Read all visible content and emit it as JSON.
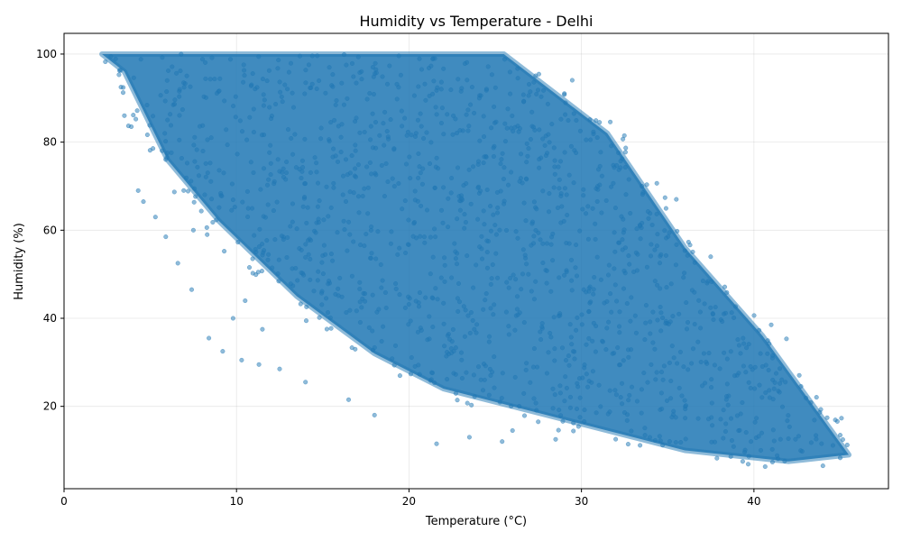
{
  "chart_data": {
    "type": "scatter",
    "title": "Humidity vs Temperature - Delhi",
    "xlabel": "Temperature (°C)",
    "ylabel": "Humidity (%)",
    "xlim": [
      0,
      47.8
    ],
    "ylim": [
      1.3,
      104.7
    ],
    "xticks": [
      0,
      10,
      20,
      30,
      40
    ],
    "yticks": [
      20,
      40,
      60,
      80,
      100
    ],
    "grid": true,
    "point_color": "#1f77b4",
    "point_alpha": 0.5,
    "n_points_approx": 60000,
    "region_outline": [
      [
        2.2,
        100
      ],
      [
        25.5,
        100
      ],
      [
        31.5,
        82
      ],
      [
        36,
        56
      ],
      [
        40.5,
        36
      ],
      [
        45.5,
        9
      ],
      [
        42,
        7.5
      ],
      [
        36,
        10
      ],
      [
        28,
        18
      ],
      [
        22,
        24
      ],
      [
        18,
        32
      ],
      [
        13.5,
        45
      ],
      [
        9,
        62
      ],
      [
        6,
        76
      ],
      [
        3.5,
        96
      ]
    ],
    "sample_points": [
      [
        3.3,
        92.5
      ],
      [
        3.5,
        86.0
      ],
      [
        3.9,
        83.5
      ],
      [
        4.3,
        69.0
      ],
      [
        4.6,
        66.5
      ],
      [
        5.3,
        63.0
      ],
      [
        5.9,
        58.5
      ],
      [
        6.6,
        52.5
      ],
      [
        7.4,
        46.5
      ],
      [
        8.4,
        35.5
      ],
      [
        9.2,
        32.5
      ],
      [
        10.3,
        30.5
      ],
      [
        11.3,
        29.5
      ],
      [
        12.5,
        28.5
      ],
      [
        14.0,
        25.5
      ],
      [
        16.5,
        21.5
      ],
      [
        18.0,
        18.0
      ],
      [
        21.6,
        11.5
      ],
      [
        23.5,
        13.0
      ],
      [
        25.4,
        12.0
      ],
      [
        26.0,
        14.5
      ],
      [
        28.5,
        12.5
      ],
      [
        10.5,
        44.0
      ],
      [
        9.8,
        40.0
      ],
      [
        11.5,
        37.5
      ],
      [
        7.5,
        60.0
      ],
      [
        8.3,
        59.0
      ],
      [
        28.0,
        57.0
      ],
      [
        33.5,
        70.0
      ],
      [
        35.5,
        67.0
      ],
      [
        41.0,
        38.5
      ],
      [
        44.0,
        6.5
      ]
    ]
  }
}
